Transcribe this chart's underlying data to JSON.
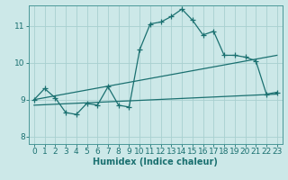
{
  "xlabel": "Humidex (Indice chaleur)",
  "bg_color": "#cce8e8",
  "grid_color": "#a8d0d0",
  "line_color": "#1a7070",
  "xlim": [
    -0.5,
    23.5
  ],
  "ylim": [
    7.8,
    11.55
  ],
  "xticks": [
    0,
    1,
    2,
    3,
    4,
    5,
    6,
    7,
    8,
    9,
    10,
    11,
    12,
    13,
    14,
    15,
    16,
    17,
    18,
    19,
    20,
    21,
    22,
    23
  ],
  "yticks": [
    8,
    9,
    10,
    11
  ],
  "line1_x": [
    0,
    1,
    2,
    3,
    4,
    5,
    6,
    7,
    8,
    9,
    10,
    11,
    12,
    13,
    14,
    15,
    16,
    17,
    18,
    19,
    20,
    21,
    22,
    23
  ],
  "line1_y": [
    9.0,
    9.3,
    9.05,
    8.65,
    8.6,
    8.9,
    8.85,
    9.35,
    8.85,
    8.8,
    10.35,
    11.05,
    11.1,
    11.25,
    11.45,
    11.15,
    10.75,
    10.85,
    10.2,
    10.2,
    10.15,
    10.05,
    9.15,
    9.2
  ],
  "line2_x": [
    0,
    23
  ],
  "line2_y": [
    9.0,
    10.2
  ],
  "line3_x": [
    0,
    23
  ],
  "line3_y": [
    8.85,
    9.15
  ],
  "axis_fontsize": 7,
  "tick_fontsize": 6.5
}
